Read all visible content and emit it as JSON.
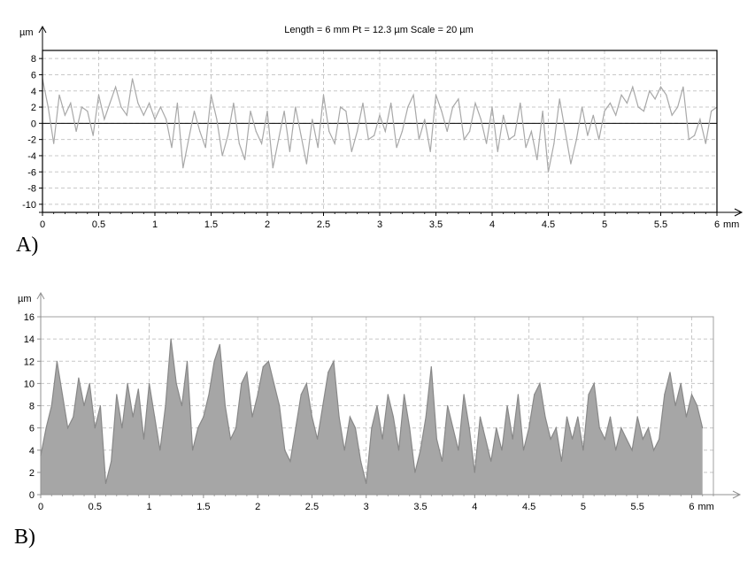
{
  "chart_data": [
    {
      "id": "A",
      "type": "line",
      "panel_label": "A)",
      "header": "Length = 6 mm  Pt = 12.3 µm  Scale = 20 µm",
      "y_unit": "µm",
      "x_unit": "mm",
      "xlim": [
        0,
        6
      ],
      "ylim": [
        -11,
        9
      ],
      "x_ticks": [
        0,
        0.5,
        1,
        1.5,
        2,
        2.5,
        3,
        3.5,
        4,
        4.5,
        5,
        5.5,
        6
      ],
      "x_tick_labels": [
        "0",
        "0.5",
        "1",
        "1.5",
        "2",
        "2.5",
        "3",
        "3.5",
        "4",
        "4.5",
        "5",
        "5.5",
        "6"
      ],
      "y_ticks": [
        8,
        6,
        4,
        2,
        0,
        -2,
        -4,
        -6,
        -8,
        -10
      ],
      "y_tick_labels": [
        "8",
        "6",
        "4",
        "2",
        "0",
        "-2",
        "-4",
        "-6",
        "-8",
        "-10"
      ],
      "grid": true,
      "mean_line": 0,
      "series": [
        {
          "color": "#a8a8a8",
          "x": [
            0,
            0.05,
            0.1,
            0.15,
            0.2,
            0.25,
            0.3,
            0.35,
            0.4,
            0.45,
            0.5,
            0.55,
            0.6,
            0.65,
            0.7,
            0.75,
            0.8,
            0.85,
            0.9,
            0.95,
            1,
            1.05,
            1.1,
            1.15,
            1.2,
            1.25,
            1.3,
            1.35,
            1.4,
            1.45,
            1.5,
            1.55,
            1.6,
            1.65,
            1.7,
            1.75,
            1.8,
            1.85,
            1.9,
            1.95,
            2,
            2.05,
            2.1,
            2.15,
            2.2,
            2.25,
            2.3,
            2.35,
            2.4,
            2.45,
            2.5,
            2.55,
            2.6,
            2.65,
            2.7,
            2.75,
            2.8,
            2.85,
            2.9,
            2.95,
            3,
            3.05,
            3.1,
            3.15,
            3.2,
            3.25,
            3.3,
            3.35,
            3.4,
            3.45,
            3.5,
            3.55,
            3.6,
            3.65,
            3.7,
            3.75,
            3.8,
            3.85,
            3.9,
            3.95,
            4,
            4.05,
            4.1,
            4.15,
            4.2,
            4.25,
            4.3,
            4.35,
            4.4,
            4.45,
            4.5,
            4.55,
            4.6,
            4.65,
            4.7,
            4.75,
            4.8,
            4.85,
            4.9,
            4.95,
            5,
            5.05,
            5.1,
            5.15,
            5.2,
            5.25,
            5.3,
            5.35,
            5.4,
            5.45,
            5.5,
            5.55,
            5.6,
            5.65,
            5.7,
            5.75,
            5.8,
            5.85,
            5.9,
            5.95,
            6
          ],
          "y": [
            5.5,
            2,
            -2.5,
            3.5,
            1,
            2.5,
            -1,
            2,
            1.5,
            -1.5,
            3.5,
            0.5,
            2.5,
            4.5,
            2,
            1,
            5.5,
            2.5,
            1,
            2.5,
            0.5,
            2,
            0.5,
            -3,
            2.5,
            -5.5,
            -2,
            1.5,
            -1,
            -3,
            3.5,
            0.5,
            -4,
            -1.5,
            2.5,
            -2.5,
            -4.5,
            1.5,
            -1,
            -2.5,
            1.5,
            -5.5,
            -2,
            1.5,
            -3.5,
            2,
            -1.5,
            -5,
            0.5,
            -3,
            3.5,
            -1,
            -2.5,
            2,
            1.5,
            -3.5,
            -1,
            2.5,
            -2,
            -1.5,
            1,
            -1,
            2.5,
            -3,
            -1,
            2,
            3.5,
            -2,
            0.5,
            -3.5,
            3.5,
            1.5,
            -1,
            2,
            3,
            -2,
            -1,
            2.5,
            0.5,
            -2.5,
            2,
            -3.5,
            1,
            -2,
            -1.5,
            2.5,
            -3,
            -1,
            -4.5,
            1.5,
            -6,
            -2.5,
            3,
            -1,
            -5,
            -2,
            2,
            -1.5,
            1,
            -2,
            1.5,
            2.5,
            1,
            3.5,
            2.5,
            4.5,
            2,
            1.5,
            4,
            3,
            4.5,
            3.5,
            1,
            2,
            4.5,
            -2,
            -1.5,
            0.5,
            -2.5,
            1.5,
            2
          ]
        }
      ]
    },
    {
      "id": "B",
      "type": "area",
      "panel_label": "B)",
      "y_unit": "µm",
      "x_unit": "mm",
      "xlim": [
        0,
        6.2
      ],
      "ylim": [
        0,
        16
      ],
      "x_ticks": [
        0,
        0.5,
        1,
        1.5,
        2,
        2.5,
        3,
        3.5,
        4,
        4.5,
        5,
        5.5,
        6
      ],
      "x_tick_labels": [
        "0",
        "0.5",
        "1",
        "1.5",
        "2",
        "2.5",
        "3",
        "3.5",
        "4",
        "4.5",
        "5",
        "5.5",
        "6"
      ],
      "y_ticks": [
        0,
        2,
        4,
        6,
        8,
        10,
        12,
        14,
        16
      ],
      "y_tick_labels": [
        "0",
        "2",
        "4",
        "6",
        "8",
        "10",
        "12",
        "14",
        "16"
      ],
      "grid": true,
      "series": [
        {
          "color": "#a6a6a6",
          "x": [
            0,
            0.05,
            0.1,
            0.15,
            0.2,
            0.25,
            0.3,
            0.35,
            0.4,
            0.45,
            0.5,
            0.55,
            0.6,
            0.65,
            0.7,
            0.75,
            0.8,
            0.85,
            0.9,
            0.95,
            1,
            1.05,
            1.1,
            1.15,
            1.2,
            1.25,
            1.3,
            1.35,
            1.4,
            1.45,
            1.5,
            1.55,
            1.6,
            1.65,
            1.7,
            1.75,
            1.8,
            1.85,
            1.9,
            1.95,
            2,
            2.05,
            2.1,
            2.15,
            2.2,
            2.25,
            2.3,
            2.35,
            2.4,
            2.45,
            2.5,
            2.55,
            2.6,
            2.65,
            2.7,
            2.75,
            2.8,
            2.85,
            2.9,
            2.95,
            3,
            3.05,
            3.1,
            3.15,
            3.2,
            3.25,
            3.3,
            3.35,
            3.4,
            3.45,
            3.5,
            3.55,
            3.6,
            3.65,
            3.7,
            3.75,
            3.8,
            3.85,
            3.9,
            3.95,
            4,
            4.05,
            4.1,
            4.15,
            4.2,
            4.25,
            4.3,
            4.35,
            4.4,
            4.45,
            4.5,
            4.55,
            4.6,
            4.65,
            4.7,
            4.75,
            4.8,
            4.85,
            4.9,
            4.95,
            5,
            5.05,
            5.1,
            5.15,
            5.2,
            5.25,
            5.3,
            5.35,
            5.4,
            5.45,
            5.5,
            5.55,
            5.6,
            5.65,
            5.7,
            5.75,
            5.8,
            5.85,
            5.9,
            5.95,
            6,
            6.05,
            6.1
          ],
          "y": [
            3.5,
            6,
            8,
            12,
            9,
            6,
            7,
            10.5,
            8,
            10,
            6,
            8,
            1,
            3,
            9,
            6,
            10,
            7,
            9.5,
            5,
            10,
            7,
            4,
            8,
            14,
            10,
            8,
            12,
            4,
            6,
            7,
            9,
            12,
            13.5,
            8,
            5,
            6,
            10,
            11,
            7,
            9,
            11.5,
            12,
            10,
            8,
            4,
            3,
            6,
            9,
            10,
            7,
            5,
            8,
            11,
            12,
            7,
            4,
            7,
            6,
            3,
            1,
            6,
            8,
            5,
            9,
            7,
            4,
            9,
            6,
            2,
            4,
            7,
            11.5,
            5,
            3,
            8,
            6,
            4,
            9,
            6,
            2,
            7,
            5,
            3,
            6,
            4,
            8,
            5,
            9,
            4,
            6,
            9,
            10,
            7,
            5,
            6,
            3,
            7,
            5,
            7,
            4,
            9,
            10,
            6,
            5,
            7,
            4,
            6,
            5,
            4,
            7,
            5,
            6,
            4,
            5,
            9,
            11,
            8,
            10,
            7,
            9,
            8,
            6
          ]
        }
      ]
    }
  ]
}
